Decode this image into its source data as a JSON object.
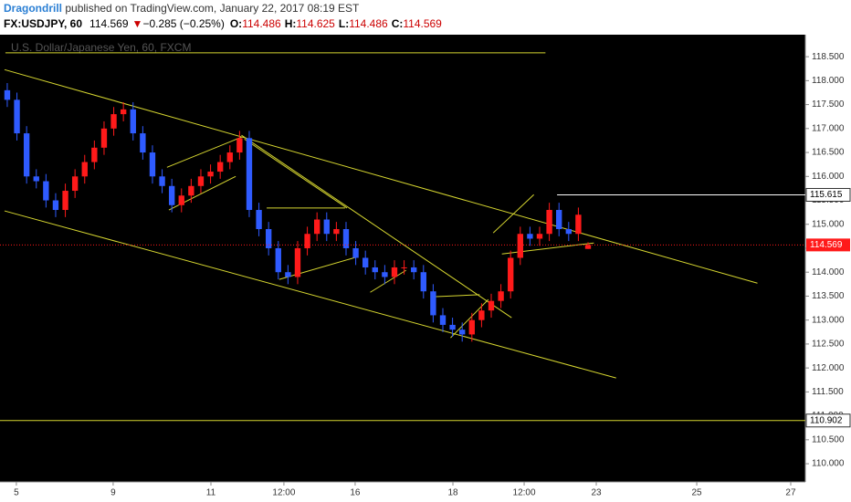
{
  "header": {
    "author": "Dragondrill",
    "published": " published on TradingView.com, January 22, 2017 08:19 EST",
    "symbol": "FX:USDJPY, 60",
    "price": "114.569",
    "arrow": "▼",
    "change": "−0.285 (−0.25%)",
    "o_label": "O:",
    "o": "114.486",
    "h_label": "H:",
    "h": "114.625",
    "l_label": "L:",
    "l": "114.486",
    "c_label": "C:",
    "c": "114.569"
  },
  "chart_data": {
    "type": "candlestick",
    "watermark": "U.S. Dollar/Japanese Yen, 60, FXCM",
    "up_color": "#ff1a1a",
    "down_color": "#2f5bff",
    "drawing_color": "#d6d630",
    "xlim": [
      -0.75,
      82.45
    ],
    "ylim": [
      109.62,
      118.96
    ],
    "xticks": [
      {
        "value": 0.94,
        "label": "5"
      },
      {
        "value": 10.94,
        "label": "9"
      },
      {
        "value": 21.04,
        "label": "11"
      },
      {
        "value": 28.58,
        "label": "12:00"
      },
      {
        "value": 35.94,
        "label": "16"
      },
      {
        "value": 46.04,
        "label": "18"
      },
      {
        "value": 53.4,
        "label": "12:00"
      },
      {
        "value": 60.85,
        "label": "23"
      },
      {
        "value": 71.23,
        "label": "25"
      },
      {
        "value": 80.94,
        "label": "27"
      }
    ],
    "yticks": [
      {
        "value": 110,
        "label": "110.000"
      },
      {
        "value": 110.5,
        "label": "110.500"
      },
      {
        "value": 111,
        "label": "111.000"
      },
      {
        "value": 111.5,
        "label": "111.500"
      },
      {
        "value": 112,
        "label": "112.000"
      },
      {
        "value": 112.5,
        "label": "112.500"
      },
      {
        "value": 113,
        "label": "113.000"
      },
      {
        "value": 113.5,
        "label": "113.500"
      },
      {
        "value": 114,
        "label": "114.000"
      },
      {
        "value": 114.5,
        "label": "114.500"
      },
      {
        "value": 115,
        "label": "115.000"
      },
      {
        "value": 115.5,
        "label": "115.500"
      },
      {
        "value": 116,
        "label": "116.000"
      },
      {
        "value": 116.5,
        "label": "116.500"
      },
      {
        "value": 117,
        "label": "117.000"
      },
      {
        "value": 117.5,
        "label": "117.500"
      },
      {
        "value": 118,
        "label": "118.000"
      },
      {
        "value": 118.5,
        "label": "118.500"
      }
    ],
    "open": [
      117.8,
      117.6,
      116.9,
      116.0,
      115.9,
      115.5,
      115.3,
      115.7,
      116.0,
      116.3,
      116.6,
      117.0,
      117.3,
      117.4,
      116.9,
      116.5,
      116.0,
      115.8,
      115.4,
      115.6,
      115.8,
      116.0,
      116.1,
      116.3,
      116.5,
      116.8,
      115.3,
      114.9,
      114.5,
      114.0,
      113.9,
      114.5,
      114.8,
      115.1,
      114.8,
      114.9,
      114.5,
      114.3,
      114.1,
      114.0,
      113.9,
      114.1,
      114.1,
      114.0,
      113.6,
      113.1,
      112.9,
      112.8,
      112.7,
      113.0,
      113.2,
      113.4,
      113.6,
      114.3,
      114.8,
      114.7,
      114.8,
      115.3,
      114.9,
      114.8,
      114.486
    ],
    "high": [
      117.95,
      117.75,
      117.05,
      116.15,
      116.05,
      115.65,
      115.85,
      116.15,
      116.45,
      116.75,
      117.15,
      117.45,
      117.55,
      117.55,
      117.05,
      116.65,
      116.15,
      115.95,
      115.75,
      115.95,
      116.15,
      116.25,
      116.45,
      116.65,
      116.95,
      116.95,
      115.45,
      115.05,
      114.65,
      114.15,
      114.65,
      114.95,
      115.25,
      115.25,
      115.05,
      115.05,
      114.65,
      114.45,
      114.25,
      114.15,
      114.25,
      114.25,
      114.25,
      114.15,
      113.75,
      113.25,
      113.05,
      112.95,
      113.15,
      113.35,
      113.55,
      113.75,
      114.45,
      114.95,
      114.95,
      114.95,
      115.45,
      115.45,
      115.05,
      115.35,
      114.625
    ],
    "low": [
      117.45,
      116.75,
      115.85,
      115.75,
      115.35,
      115.15,
      115.15,
      115.55,
      115.85,
      116.15,
      116.45,
      116.85,
      117.15,
      116.75,
      116.35,
      115.85,
      115.65,
      115.25,
      115.25,
      115.45,
      115.65,
      115.85,
      115.95,
      116.15,
      116.35,
      115.15,
      114.75,
      114.35,
      113.85,
      113.75,
      113.75,
      114.35,
      114.65,
      114.65,
      114.65,
      114.35,
      114.15,
      113.95,
      113.85,
      113.75,
      113.75,
      113.95,
      113.85,
      113.45,
      112.95,
      112.75,
      112.65,
      112.55,
      112.55,
      112.85,
      113.05,
      113.25,
      113.45,
      114.15,
      114.55,
      114.55,
      114.65,
      114.75,
      114.65,
      114.65,
      114.486
    ],
    "close": [
      117.6,
      116.9,
      116.0,
      115.9,
      115.5,
      115.3,
      115.7,
      116.0,
      116.3,
      116.6,
      117.0,
      117.3,
      117.4,
      116.9,
      116.5,
      116.0,
      115.8,
      115.4,
      115.6,
      115.8,
      116.0,
      116.1,
      116.3,
      116.5,
      116.8,
      115.3,
      114.9,
      114.5,
      114.0,
      113.9,
      114.5,
      114.8,
      115.1,
      114.8,
      114.9,
      114.5,
      114.3,
      114.1,
      114.0,
      113.9,
      114.1,
      114.1,
      114.0,
      113.6,
      113.1,
      112.9,
      112.8,
      112.7,
      113.0,
      113.2,
      113.4,
      113.6,
      114.3,
      114.8,
      114.7,
      114.8,
      115.3,
      114.9,
      114.8,
      115.2,
      114.569
    ],
    "drawings": [
      [
        [
          -0.19,
          118.58
        ],
        [
          55.6,
          118.58
        ]
      ],
      [
        [
          -0.28,
          118.23
        ],
        [
          77.5,
          113.77
        ]
      ],
      [
        [
          -0.28,
          115.28
        ],
        [
          62.9,
          111.79
        ]
      ],
      [
        [
          24.2,
          116.86
        ],
        [
          52.1,
          113.05
        ]
      ],
      [
        [
          16.5,
          116.19
        ],
        [
          24.2,
          116.82
        ]
      ],
      [
        [
          16.7,
          115.3
        ],
        [
          23.6,
          116.0
        ]
      ],
      [
        [
          26.8,
          115.34
        ],
        [
          34.9,
          115.34
        ]
      ],
      [
        [
          28.1,
          113.85
        ],
        [
          36.0,
          114.31
        ]
      ],
      [
        [
          24.5,
          116.78
        ],
        [
          35.1,
          115.34
        ]
      ],
      [
        [
          37.5,
          113.58
        ],
        [
          41.2,
          114.04
        ]
      ],
      [
        [
          44.3,
          113.49
        ],
        [
          48.8,
          113.53
        ]
      ],
      [
        [
          45.8,
          112.63
        ],
        [
          49.7,
          113.43
        ]
      ],
      [
        [
          50.2,
          114.82
        ],
        [
          54.4,
          115.62
        ]
      ],
      [
        [
          51.1,
          114.38
        ],
        [
          60.6,
          114.61
        ]
      ]
    ],
    "levels": [
      {
        "value": 115.615,
        "from": 56.8,
        "color": "#ffffff"
      },
      {
        "value": 110.902,
        "from": -0.75,
        "color": "#d6d630"
      }
    ],
    "last_price": 114.569,
    "last_color": "#ff1a1a"
  }
}
